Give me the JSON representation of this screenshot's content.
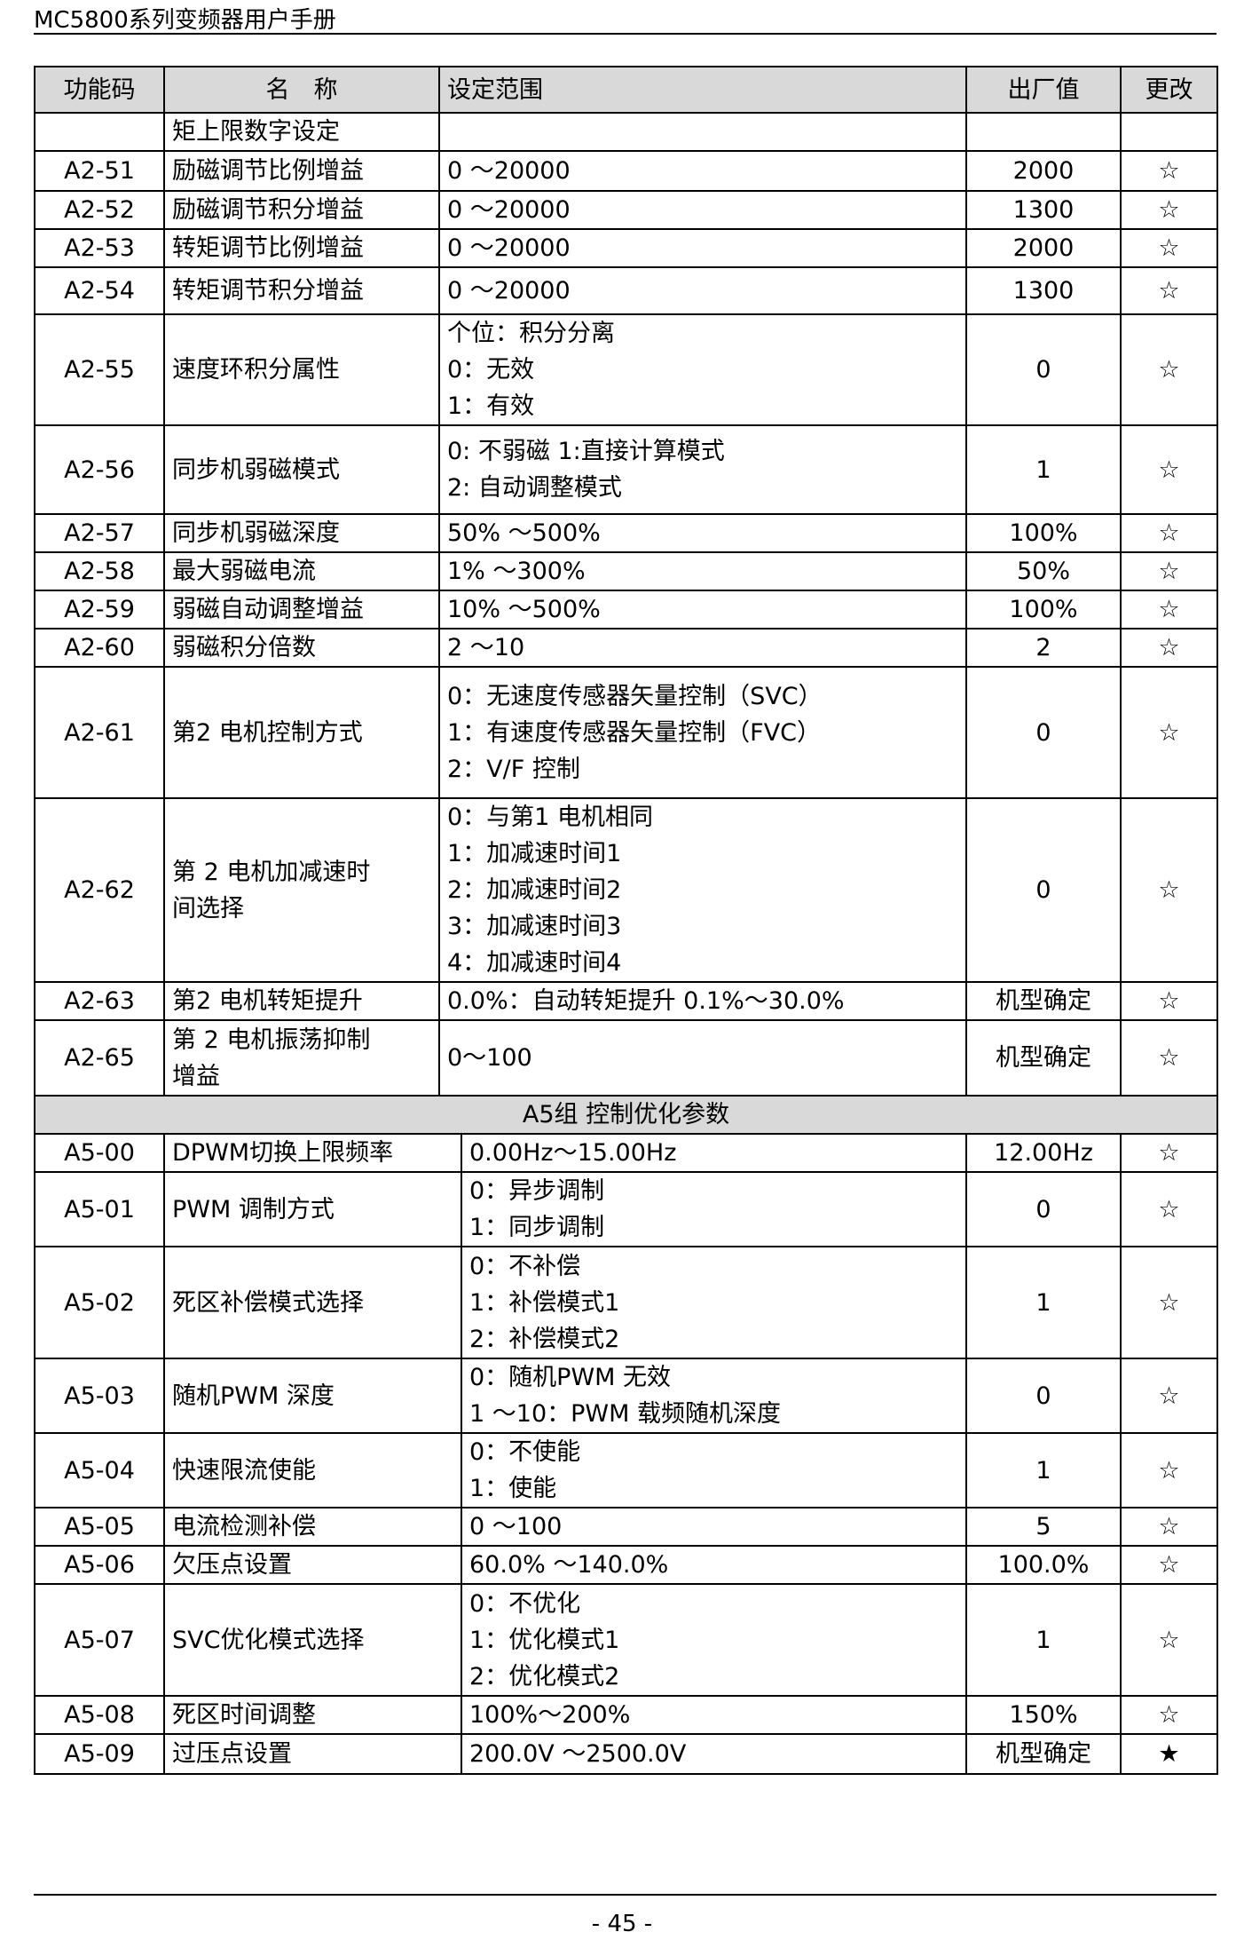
{
  "header": {
    "title": "MC5800系列变频器用户手册"
  },
  "table": {
    "columns": [
      "功能码",
      "名　称",
      "设定范围",
      "出厂值",
      "更改"
    ],
    "rows": [
      {
        "code": null,
        "name": [
          "矩上限数字设定"
        ],
        "range": null,
        "default": null,
        "modify": null
      },
      {
        "code": "A2-51",
        "name": [
          "励磁调节比例增益"
        ],
        "range": [
          "0 ～20000"
        ],
        "default": "2000",
        "modify": "☆"
      },
      {
        "code": "A2-52",
        "name": [
          "励磁调节积分增益"
        ],
        "range": [
          "0 ～20000"
        ],
        "default": "1300",
        "modify": "☆"
      },
      {
        "code": "A2-53",
        "name": [
          "转矩调节比例增益"
        ],
        "range": [
          "0 ～20000"
        ],
        "default": "2000",
        "modify": "☆"
      },
      {
        "code": "A2-54",
        "name": [
          "转矩调节积分增益"
        ],
        "range": [
          "0 ～20000"
        ],
        "default": "1300",
        "modify": "☆"
      },
      {
        "code": "A2-55",
        "name": [
          "速度环积分属性"
        ],
        "range": [
          "个位：积分分离",
          "0：无效",
          "1：有效"
        ],
        "default": "0",
        "modify": "☆"
      },
      {
        "code": "A2-56",
        "name": [
          "同步机弱磁模式"
        ],
        "range": [
          "0: 不弱磁  1:直接计算模式",
          "2: 自动调整模式"
        ],
        "default": "1",
        "modify": "☆"
      },
      {
        "code": "A2-57",
        "name": [
          "同步机弱磁深度"
        ],
        "range": [
          "50% ～500%"
        ],
        "default": "100%",
        "modify": "☆"
      },
      {
        "code": "A2-58",
        "name": [
          "最大弱磁电流"
        ],
        "range": [
          "1% ～300%"
        ],
        "default": "50%",
        "modify": "☆"
      },
      {
        "code": "A2-59",
        "name": [
          "弱磁自动调整增益"
        ],
        "range": [
          "10% ～500%"
        ],
        "default": "100%",
        "modify": "☆"
      },
      {
        "code": "A2-60",
        "name": [
          "弱磁积分倍数"
        ],
        "range": [
          "2 ～10"
        ],
        "default": "2",
        "modify": "☆"
      },
      {
        "code": "A2-61",
        "name": [
          "第2 电机控制方式"
        ],
        "range": [
          "0：无速度传感器矢量控制（SVC）",
          "1：有速度传感器矢量控制（FVC）",
          "2：V/F 控制"
        ],
        "default": "0",
        "modify": "☆"
      },
      {
        "code": "A2-62",
        "name": [
          "第 2 电机加减速时",
          "间选择"
        ],
        "range": [
          "0：与第1 电机相同",
          "1：加减速时间1",
          "2：加减速时间2",
          "3：加减速时间3",
          "4：加减速时间4"
        ],
        "default": "0",
        "modify": "☆"
      },
      {
        "code": "A2-63",
        "name": [
          "第2 电机转矩提升"
        ],
        "range": [
          "0.0%：自动转矩提升  0.1%～30.0%"
        ],
        "default": "机型确定",
        "modify": "☆"
      },
      {
        "code": "A2-65",
        "name": [
          "第 2 电机振荡抑制",
          "增益"
        ],
        "range": [
          "0～100"
        ],
        "default": "机型确定",
        "modify": "☆"
      }
    ],
    "section": {
      "title": "A5组 控制优化参数",
      "rows": [
        {
          "code": "A5-00",
          "name": [
            "DPWM切换上限频率"
          ],
          "range": [
            "0.00Hz～15.00Hz"
          ],
          "default": "12.00Hz",
          "modify": "☆"
        },
        {
          "code": "A5-01",
          "name": [
            "PWM 调制方式"
          ],
          "range": [
            "0：异步调制",
            "1：同步调制"
          ],
          "default": "0",
          "modify": "☆"
        },
        {
          "code": "A5-02",
          "name": [
            "死区补偿模式选择"
          ],
          "range": [
            "0：不补偿",
            "1：补偿模式1",
            "2：补偿模式2"
          ],
          "default": "1",
          "modify": "☆"
        },
        {
          "code": "A5-03",
          "name": [
            "随机PWM 深度"
          ],
          "range": [
            "0：随机PWM 无效",
            "1 ～10：PWM 载频随机深度"
          ],
          "default": "0",
          "modify": "☆"
        },
        {
          "code": "A5-04",
          "name": [
            "快速限流使能"
          ],
          "range": [
            "0：不使能",
            "1：使能"
          ],
          "default": "1",
          "modify": "☆"
        },
        {
          "code": "A5-05",
          "name": [
            "电流检测补偿"
          ],
          "range": [
            "0 ～100"
          ],
          "default": "5",
          "modify": "☆"
        },
        {
          "code": "A5-06",
          "name": [
            "欠压点设置"
          ],
          "range": [
            "60.0% ～140.0%"
          ],
          "default": "100.0%",
          "modify": "☆"
        },
        {
          "code": "A5-07",
          "name": [
            "SVC优化模式选择"
          ],
          "range": [
            "0：不优化",
            "1：优化模式1",
            "2：优化模式2"
          ],
          "default": "1",
          "modify": "☆"
        },
        {
          "code": "A5-08",
          "name": [
            "死区时间调整"
          ],
          "range": [
            "100%～200%"
          ],
          "default": "150%",
          "modify": "☆"
        },
        {
          "code": "A5-09",
          "name": [
            "过压点设置"
          ],
          "range": [
            "200.0V ～2500.0V"
          ],
          "default": "机型确定",
          "modify": "★"
        }
      ]
    }
  },
  "footer": {
    "page": "- 45 -"
  }
}
